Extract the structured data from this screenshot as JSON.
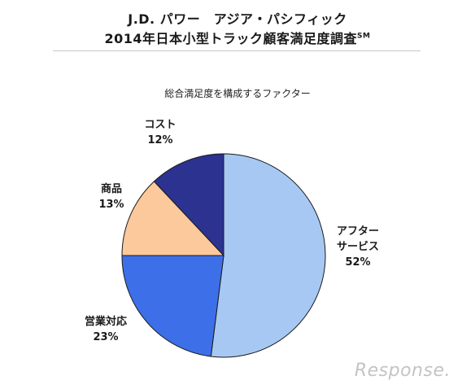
{
  "header": {
    "title_line1": "J.D. パワー　アジア・パシフィック",
    "title_line2": "2014年日本小型トラック顧客満足度調査",
    "title_sup": "SM"
  },
  "chart_data": {
    "type": "pie",
    "title": "総合満足度を構成するファクター",
    "slices": [
      {
        "name": "アフターサービス",
        "label_lines": [
          "アフター",
          "サービス"
        ],
        "value": 52,
        "value_label": "52%",
        "color": "#a8c8f4"
      },
      {
        "name": "営業対応",
        "label_lines": [
          "営業対応"
        ],
        "value": 23,
        "value_label": "23%",
        "color": "#3d6fe8"
      },
      {
        "name": "商品",
        "label_lines": [
          "商品"
        ],
        "value": 13,
        "value_label": "13%",
        "color": "#fbc99b"
      },
      {
        "name": "コスト",
        "label_lines": [
          "コスト"
        ],
        "value": 12,
        "value_label": "12%",
        "color": "#2b3290"
      }
    ]
  },
  "watermark": "Response."
}
